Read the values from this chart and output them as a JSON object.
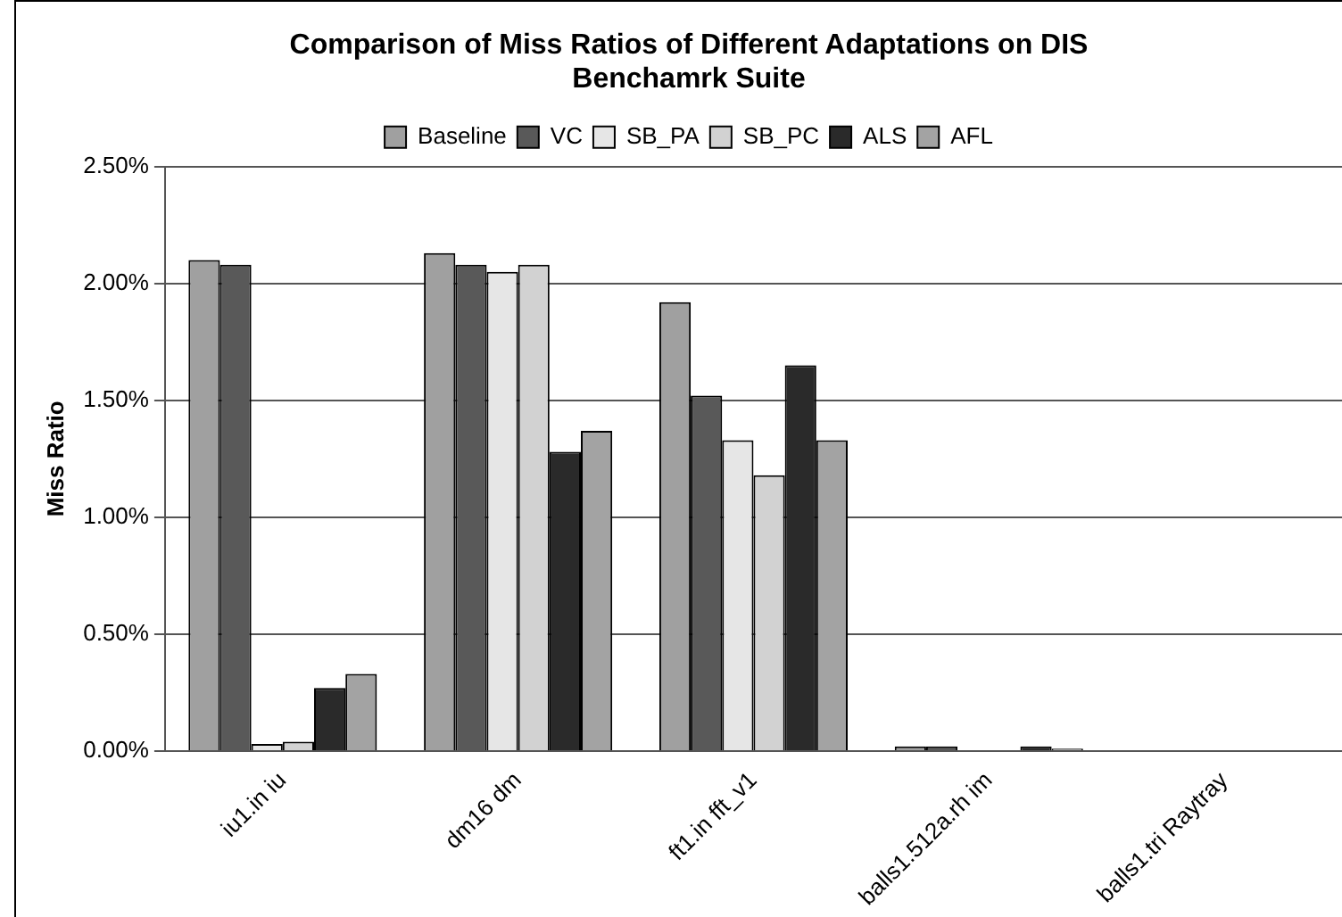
{
  "chart_data": {
    "type": "bar",
    "title": "Comparison of Miss Ratios of Different Adaptations on DIS Benchamrk Suite",
    "ylabel": "Miss Ratio",
    "categories": [
      "iu1.in iu",
      "dm16 dm",
      "ft1.in fft_v1",
      "balls1.512a.rh im",
      "balls1.tri Raytray"
    ],
    "series": [
      {
        "name": "Baseline",
        "color": "#a0a0a0",
        "values": [
          2.1,
          2.13,
          1.92,
          0.02,
          0
        ]
      },
      {
        "name": "VC",
        "color": "#595959",
        "values": [
          2.08,
          2.08,
          1.52,
          0.02,
          0
        ]
      },
      {
        "name": "SB_PA",
        "color": "#e6e6e6",
        "values": [
          0.03,
          2.05,
          1.33,
          0,
          0
        ]
      },
      {
        "name": "SB_PC",
        "color": "#d2d2d2",
        "values": [
          0.04,
          2.08,
          1.18,
          0,
          0
        ]
      },
      {
        "name": "ALS",
        "color": "#2a2a2a",
        "values": [
          0.27,
          1.28,
          1.65,
          0.02,
          0
        ]
      },
      {
        "name": "AFL",
        "color": "#a3a3a3",
        "values": [
          0.33,
          1.37,
          1.33,
          0.01,
          0
        ]
      }
    ],
    "ylim": [
      0,
      2.5
    ],
    "yticks": [
      {
        "value": 0,
        "label": "0.00%"
      },
      {
        "value": 0.5,
        "label": "0.50%"
      },
      {
        "value": 1,
        "label": "1.00%"
      },
      {
        "value": 1.5,
        "label": "1.50%"
      },
      {
        "value": 2,
        "label": "2.00%"
      },
      {
        "value": 2.5,
        "label": "2.50%"
      }
    ],
    "grid": "y",
    "legend": "top"
  }
}
